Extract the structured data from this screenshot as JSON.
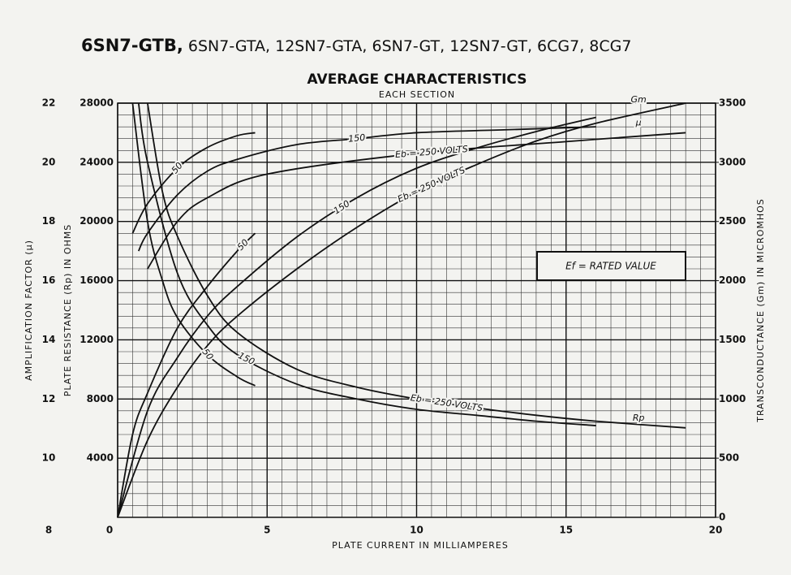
{
  "chart_data": {
    "type": "line",
    "title": [
      "6SN7-GTB,",
      "6SN7-GTA, 12SN7-GTA, 6SN7-GT, 12SN7-GT, 6CG7, 8CG7"
    ],
    "subtitle": "AVERAGE CHARACTERISTICS",
    "subtitle2": "EACH SECTION",
    "x_label": "PLATE CURRENT IN MILLIAMPERES",
    "y_label": "PLATE RESISTANCE (Rp) IN OHMS",
    "y2_label": "TRANSCONDUCTANCE (Gm) IN MICROMHOS",
    "y3_label": "AMPLIFICATION FACTOR (μ)",
    "annotation": "Ef = RATED VALUE",
    "xlim": [
      0,
      20
    ],
    "xticks": [
      0,
      5,
      10,
      15,
      20
    ],
    "ylim": [
      0,
      28000
    ],
    "yticks": [
      4000,
      8000,
      12000,
      16000,
      20000,
      24000,
      28000
    ],
    "y2lim": [
      0,
      3500
    ],
    "y2ticks": [
      0,
      500,
      1000,
      1500,
      2000,
      2500,
      3000,
      3500
    ],
    "y3lim": [
      8,
      22
    ],
    "y3ticks": [
      8,
      10,
      12,
      14,
      16,
      18,
      20,
      22
    ],
    "grid": true,
    "series": [
      {
        "name": "50",
        "axis": "y3",
        "color": "#111",
        "x": [
          0.5,
          1,
          2,
          3,
          4,
          4.6
        ],
        "values": [
          17.6,
          18.6,
          19.8,
          20.5,
          20.9,
          21.0
        ]
      },
      {
        "name": "150",
        "axis": "y3",
        "color": "#111",
        "x": [
          0.7,
          1,
          2,
          3,
          4,
          6,
          8,
          10,
          13,
          16
        ],
        "values": [
          17.0,
          17.6,
          18.9,
          19.7,
          20.1,
          20.6,
          20.8,
          21.0,
          21.1,
          21.2
        ]
      },
      {
        "name": "Eb = 250 VOLTS",
        "end_label": "μ",
        "axis": "y3",
        "color": "#111",
        "x": [
          1,
          2,
          3,
          5,
          10,
          15,
          19
        ],
        "values": [
          16.4,
          18.0,
          18.8,
          19.6,
          20.3,
          20.7,
          21.0
        ]
      },
      {
        "name": "50",
        "axis": "y2",
        "color": "#111",
        "x": [
          0,
          0.5,
          1,
          2,
          3,
          4,
          4.6
        ],
        "values": [
          0,
          700,
          1050,
          1600,
          1950,
          2250,
          2400
        ]
      },
      {
        "name": "150",
        "axis": "y2",
        "color": "#111",
        "x": [
          0,
          1,
          2,
          3,
          4,
          6,
          8,
          10,
          12,
          14,
          16
        ],
        "values": [
          0,
          900,
          1350,
          1700,
          1950,
          2370,
          2700,
          2950,
          3120,
          3260,
          3380
        ]
      },
      {
        "name": "Eb = 250 VOLTS",
        "end_label": "Gm",
        "axis": "y2",
        "color": "#111",
        "x": [
          0,
          1,
          2,
          3,
          4,
          6,
          8,
          10,
          12,
          14,
          16,
          19
        ],
        "values": [
          0,
          650,
          1100,
          1450,
          1700,
          2100,
          2450,
          2750,
          2980,
          3180,
          3330,
          3500
        ]
      },
      {
        "name": "50",
        "axis": "y",
        "color": "#111",
        "x": [
          0.5,
          1,
          1.5,
          2,
          3,
          4,
          4.6
        ],
        "values": [
          28000,
          20000,
          16000,
          13500,
          11000,
          9500,
          8900
        ]
      },
      {
        "name": "150",
        "axis": "y",
        "color": "#111",
        "x": [
          0.7,
          1,
          2,
          3,
          4,
          6,
          8,
          10,
          12,
          14,
          16
        ],
        "values": [
          28000,
          24000,
          16500,
          13000,
          11000,
          9000,
          8000,
          7300,
          6900,
          6500,
          6200
        ]
      },
      {
        "name": "Eb = 250 VOLTS",
        "end_label": "Rp",
        "axis": "y",
        "color": "#111",
        "x": [
          1,
          1.5,
          2,
          3,
          4,
          6,
          8,
          10,
          12,
          14,
          16,
          19
        ],
        "values": [
          28000,
          22000,
          19000,
          15000,
          12500,
          10000,
          8800,
          8000,
          7400,
          6900,
          6500,
          6050
        ]
      }
    ]
  }
}
